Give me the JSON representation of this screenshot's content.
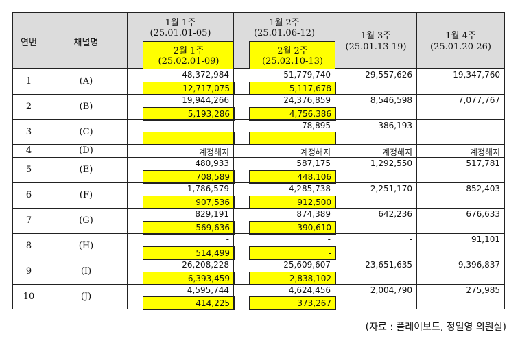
{
  "headers": {
    "no": "연번",
    "channel": "채널명",
    "w1_title": "1월 1주",
    "w1_range": "(25.01.01-05)",
    "w1_sub_title": "2월 1주",
    "w1_sub_range": "(25.02.01-09)",
    "w2_title": "1월 2주",
    "w2_range": "(25.01.06-12)",
    "w2_sub_title": "2월 2주",
    "w2_sub_range": "(25.02.10-13)",
    "w3_title": "1월 3주",
    "w3_range": "(25.01.13-19)",
    "w4_title": "1월 4주",
    "w4_range": "(25.01.20-26)"
  },
  "rows": [
    {
      "no": "1",
      "ch": "(A)",
      "c1_top": "48,372,984",
      "c1_bot": "12,717,075",
      "c2_top": "51,779,740",
      "c2_bot": "5,117,678",
      "c3": "29,557,626",
      "c4": "19,347,760"
    },
    {
      "no": "2",
      "ch": "(B)",
      "c1_top": "19,944,266",
      "c1_bot": "5,193,286",
      "c2_top": "24,376,859",
      "c2_bot": "4,756,386",
      "c3": "8,546,598",
      "c4": "7,077,767"
    },
    {
      "no": "3",
      "ch": "(C)",
      "c1_top": "-",
      "c1_bot": "-",
      "c2_top": "78,895",
      "c2_bot": "-",
      "c3": "386,193",
      "c4": "-"
    },
    {
      "no": "4",
      "ch": "(D)",
      "c1_top": "계정해지",
      "c2_top": "계정해지",
      "c3": "계정해지",
      "c4": "계정해지",
      "merged": true
    },
    {
      "no": "5",
      "ch": "(E)",
      "c1_top": "480,933",
      "c1_bot": "708,589",
      "c2_top": "587,175",
      "c2_bot": "448,106",
      "c3": "1,292,550",
      "c4": "517,781"
    },
    {
      "no": "6",
      "ch": "(F)",
      "c1_top": "1,786,579",
      "c1_bot": "907,536",
      "c2_top": "4,285,738",
      "c2_bot": "912,500",
      "c3": "2,251,170",
      "c4": "852,403"
    },
    {
      "no": "7",
      "ch": "(G)",
      "c1_top": "829,191",
      "c1_bot": "569,636",
      "c2_top": "874,389",
      "c2_bot": "390,610",
      "c3": "642,236",
      "c4": "676,633"
    },
    {
      "no": "8",
      "ch": "(H)",
      "c1_top": "-",
      "c1_bot": "514,499",
      "c2_top": "-",
      "c2_bot": "-",
      "c3": "-",
      "c4": "91,101"
    },
    {
      "no": "9",
      "ch": "(I)",
      "c1_top": "26,208,228",
      "c1_bot": "6,393,459",
      "c2_top": "25,609,607",
      "c2_bot": "2,838,102",
      "c3": "23,651,635",
      "c4": "9,396,837"
    },
    {
      "no": "10",
      "ch": "(J)",
      "c1_top": "4,595,744",
      "c1_bot": "414,225",
      "c2_top": "4,624,456",
      "c2_bot": "373,267",
      "c3": "2,004,790",
      "c4": "275,985"
    }
  ],
  "source_note": "(자료 : 플레이보드, 정일영 의원실)",
  "colors": {
    "header_gray": "#dcdcdc",
    "highlight": "#ffff00",
    "border": "#222222"
  }
}
